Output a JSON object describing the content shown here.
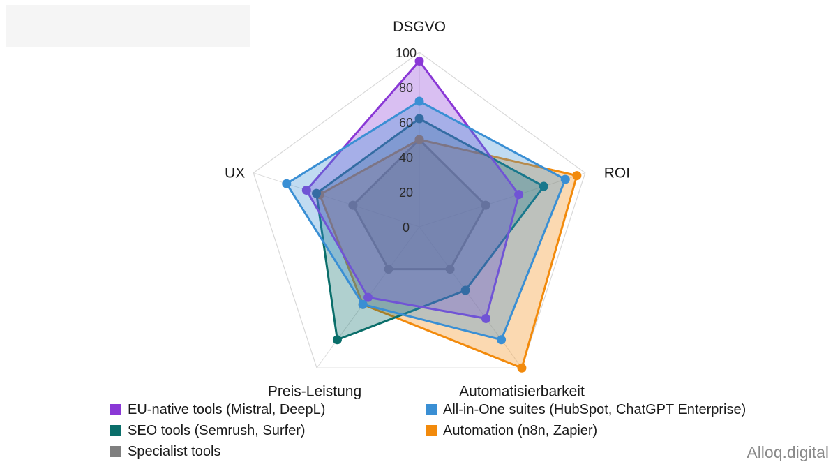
{
  "chart_data": {
    "type": "radar",
    "axes": [
      "DSGVO",
      "ROI",
      "Automatisierbarkeit",
      "Preis-Leistung",
      "UX"
    ],
    "r_ticks": [
      "0",
      "20",
      "40",
      "60",
      "80",
      "100"
    ],
    "rlim": [
      0,
      100
    ],
    "grid": true,
    "legend_position": "bottom",
    "series": [
      {
        "name": "Specialist tools",
        "color": "#7f7f7f",
        "values": [
          50,
          40,
          30,
          30,
          40
        ]
      },
      {
        "name": "Automation (n8n, Zapier)",
        "color": "#f28a0c",
        "values": [
          50,
          95,
          100,
          55,
          60
        ]
      },
      {
        "name": "SEO tools (Semrush, Surfer)",
        "color": "#0a6e6a",
        "values": [
          62,
          75,
          45,
          80,
          62
        ]
      },
      {
        "name": "EU-native tools (Mistral, DeepL)",
        "color": "#8a38d6",
        "values": [
          95,
          60,
          65,
          50,
          68
        ]
      },
      {
        "name": "All-in-One suites (HubSpot, ChatGPT Enterprise)",
        "color": "#3a8fd4",
        "values": [
          72,
          88,
          80,
          55,
          80
        ]
      }
    ]
  },
  "legend": [
    {
      "label": "EU-native tools (Mistral, DeepL)",
      "color": "#8a38d6"
    },
    {
      "label": "All-in-One suites (HubSpot, ChatGPT Enterprise)",
      "color": "#3a8fd4"
    },
    {
      "label": "SEO tools (Semrush, Surfer)",
      "color": "#0a6e6a"
    },
    {
      "label": "Automation (n8n, Zapier)",
      "color": "#f28a0c"
    },
    {
      "label": "Specialist tools",
      "color": "#7f7f7f"
    }
  ],
  "brand": "Alloq.digital"
}
